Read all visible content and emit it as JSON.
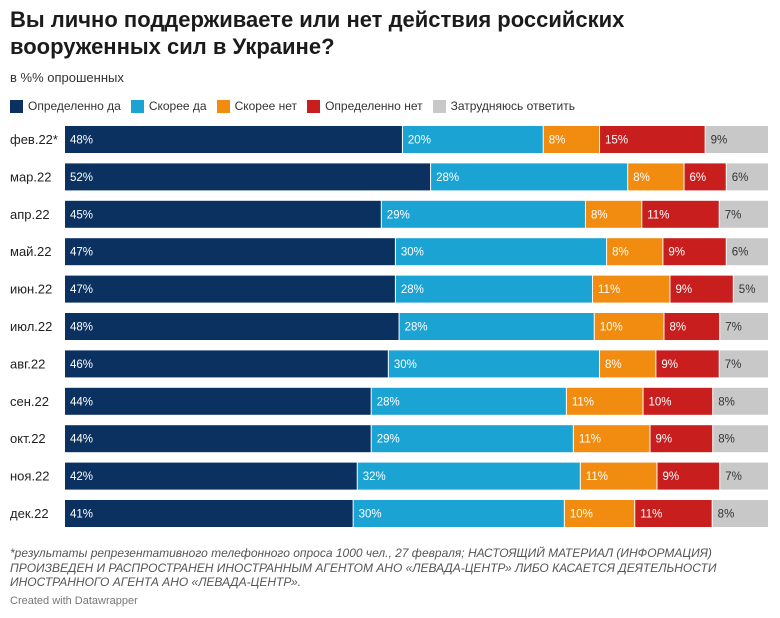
{
  "title": "Вы лично поддерживаете или нет действия российских вооруженных сил в Украине?",
  "subtitle": "в %% опрошенных",
  "colors": {
    "definitely_yes": "#0b3160",
    "rather_yes": "#1ba3d4",
    "rather_no": "#f18c10",
    "definitely_no": "#c91e1e",
    "hard_to_say": "#c8c8c8"
  },
  "chart_data": {
    "type": "bar",
    "orientation": "horizontal",
    "stacked": true,
    "title": "Вы лично поддерживаете или нет действия российских вооруженных сил в Украине?",
    "subtitle": "в %% опрошенных",
    "categories": [
      "фев.22*",
      "мар.22",
      "апр.22",
      "май.22",
      "июн.22",
      "июл.22",
      "авг.22",
      "сен.22",
      "окт.22",
      "ноя.22",
      "дек.22"
    ],
    "series": [
      {
        "key": "definitely_yes",
        "name": "Определенно да",
        "values": [
          48,
          52,
          45,
          47,
          47,
          48,
          46,
          44,
          44,
          42,
          41
        ]
      },
      {
        "key": "rather_yes",
        "name": "Скорее да",
        "values": [
          20,
          28,
          29,
          30,
          28,
          28,
          30,
          28,
          29,
          32,
          30
        ]
      },
      {
        "key": "rather_no",
        "name": "Скорее нет",
        "values": [
          8,
          8,
          8,
          8,
          11,
          10,
          8,
          11,
          11,
          11,
          10
        ]
      },
      {
        "key": "definitely_no",
        "name": "Определенно нет",
        "values": [
          15,
          6,
          11,
          9,
          9,
          8,
          9,
          10,
          9,
          9,
          11
        ]
      },
      {
        "key": "hard_to_say",
        "name": "Затрудняюсь ответить",
        "values": [
          9,
          6,
          7,
          6,
          5,
          7,
          7,
          8,
          8,
          7,
          8
        ]
      }
    ],
    "value_suffix": "%",
    "xlabel": "",
    "ylabel": ""
  },
  "footnote": "*результаты репрезентативного телефонного опроса 1000 чел., 27 февраля; НАСТОЯЩИЙ МАТЕРИАЛ (ИНФОРМАЦИЯ) ПРОИЗВЕДЕН И РАСПРОСТРАНЕН ИНОСТРАННЫМ АГЕНТОМ АНО «ЛЕВАДА-ЦЕНТР» ЛИБО КАСАЕТСЯ ДЕЯТЕЛЬНОСТИ ИНОСТРАННОГО АГЕНТА АНО «ЛЕВАДА-ЦЕНТР».",
  "credit": "Created with Datawrapper"
}
